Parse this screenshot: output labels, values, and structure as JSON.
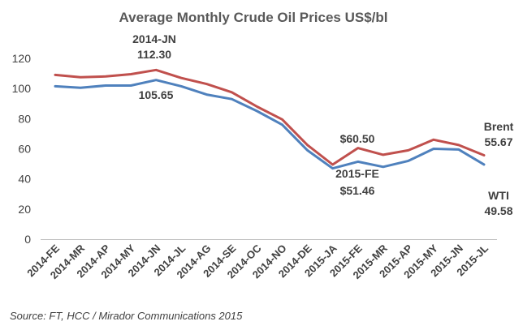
{
  "chart_data": {
    "type": "line",
    "title": "Average Monthly Crude Oil Prices US$/bl",
    "xlabel": "",
    "ylabel": "",
    "ylim": [
      0,
      120
    ],
    "yticks": [
      "0",
      "20",
      "40",
      "60",
      "80",
      "100",
      "120"
    ],
    "grid": false,
    "x": [
      "2014-FE",
      "2014-MR",
      "2014-AP",
      "2014-MY",
      "2014-JN",
      "2014-JL",
      "2014-AG",
      "2014-SE",
      "2014-OC",
      "2014-NO",
      "2014-DE",
      "2015-JA",
      "2015-FE",
      "2015-MR",
      "2015-AP",
      "2015-MY",
      "2015-JN",
      "2015-JL"
    ],
    "series": [
      {
        "name": "Brent",
        "color": "#c0504d",
        "values": [
          109.0,
          107.5,
          108.0,
          109.5,
          112.3,
          107.0,
          103.0,
          97.5,
          88.0,
          79.5,
          62.5,
          49.5,
          60.5,
          56.0,
          59.0,
          66.0,
          62.5,
          55.67
        ]
      },
      {
        "name": "WTI",
        "color": "#4f81bd",
        "values": [
          101.5,
          100.5,
          102.0,
          102.0,
          105.65,
          101.5,
          96.0,
          93.0,
          85.0,
          76.0,
          59.0,
          47.0,
          51.46,
          48.0,
          52.0,
          60.0,
          59.5,
          49.58
        ]
      }
    ],
    "annotations": {
      "jn_label": "2014-JN",
      "jn_brent": "112.30",
      "jn_wti": "105.65",
      "fe_brent": "$60.50",
      "fe_label": "2015-FE",
      "fe_wti": "$51.46",
      "end_brent_name": "Brent",
      "end_brent_value": "55.67",
      "end_wti_name": "WTI",
      "end_wti_value": "49.58"
    },
    "source": "Source: FT, HCC / Mirador Communications 2015"
  }
}
